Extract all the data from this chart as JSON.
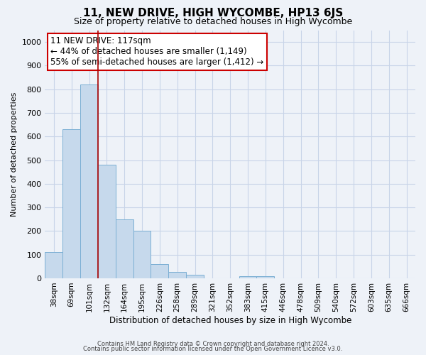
{
  "title": "11, NEW DRIVE, HIGH WYCOMBE, HP13 6JS",
  "subtitle": "Size of property relative to detached houses in High Wycombe",
  "xlabel": "Distribution of detached houses by size in High Wycombe",
  "ylabel": "Number of detached properties",
  "footer_line1": "Contains HM Land Registry data © Crown copyright and database right 2024.",
  "footer_line2": "Contains public sector information licensed under the Open Government Licence v3.0.",
  "bin_labels": [
    "38sqm",
    "69sqm",
    "101sqm",
    "132sqm",
    "164sqm",
    "195sqm",
    "226sqm",
    "258sqm",
    "289sqm",
    "321sqm",
    "352sqm",
    "383sqm",
    "415sqm",
    "446sqm",
    "478sqm",
    "509sqm",
    "540sqm",
    "572sqm",
    "603sqm",
    "635sqm",
    "666sqm"
  ],
  "bar_values": [
    110,
    630,
    820,
    480,
    250,
    200,
    60,
    28,
    15,
    0,
    0,
    10,
    10,
    0,
    0,
    0,
    0,
    0,
    0,
    0,
    0
  ],
  "bar_color": "#c6d9ec",
  "bar_edge_color": "#7bafd4",
  "grid_color": "#c8d4e8",
  "background_color": "#eef2f8",
  "ylim": [
    0,
    1050
  ],
  "yticks": [
    0,
    100,
    200,
    300,
    400,
    500,
    600,
    700,
    800,
    900,
    1000
  ],
  "red_line_x": 2.5,
  "annotation_title": "11 NEW DRIVE: 117sqm",
  "annotation_line2": "← 44% of detached houses are smaller (1,149)",
  "annotation_line3": "55% of semi-detached houses are larger (1,412) →",
  "annotation_box_color": "#ffffff",
  "annotation_box_edge_color": "#cc0000",
  "red_line_color": "#aa0000",
  "title_fontsize": 11,
  "subtitle_fontsize": 9,
  "annotation_fontsize": 8.5,
  "ylabel_fontsize": 8,
  "xlabel_fontsize": 8.5,
  "tick_fontsize": 8,
  "xtick_fontsize": 7.5,
  "footer_fontsize": 6
}
